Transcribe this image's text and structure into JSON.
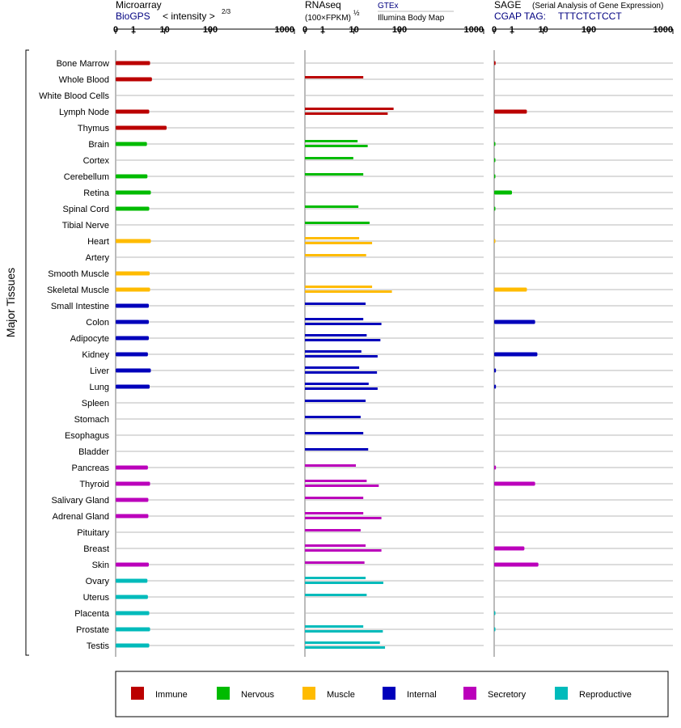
{
  "chart_data": {
    "type": "bar",
    "y_axis_label": "Major Tissues",
    "axis_ticks": [
      "0",
      "1",
      "10",
      "100",
      "1000"
    ],
    "tissues": [
      "Bone Marrow",
      "Whole Blood",
      "White Blood Cells",
      "Lymph Node",
      "Thymus",
      "Brain",
      "Cortex",
      "Cerebellum",
      "Retina",
      "Spinal Cord",
      "Tibial Nerve",
      "Heart",
      "Artery",
      "Smooth Muscle",
      "Skeletal Muscle",
      "Small Intestine",
      "Colon",
      "Adipocyte",
      "Kidney",
      "Liver",
      "Lung",
      "Spleen",
      "Stomach",
      "Esophagus",
      "Bladder",
      "Pancreas",
      "Thyroid",
      "Salivary Gland",
      "Adrenal Gland",
      "Pituitary",
      "Breast",
      "Skin",
      "Ovary",
      "Uterus",
      "Placenta",
      "Prostate",
      "Testis"
    ],
    "tissue_groups": [
      "Immune",
      "Immune",
      "Immune",
      "Immune",
      "Immune",
      "Nervous",
      "Nervous",
      "Nervous",
      "Nervous",
      "Nervous",
      "Nervous",
      "Muscle",
      "Muscle",
      "Muscle",
      "Muscle",
      "Internal",
      "Internal",
      "Internal",
      "Internal",
      "Internal",
      "Internal",
      "Internal",
      "Internal",
      "Internal",
      "Internal",
      "Secretory",
      "Secretory",
      "Secretory",
      "Secretory",
      "Secretory",
      "Secretory",
      "Secretory",
      "Reproductive",
      "Reproductive",
      "Reproductive",
      "Reproductive",
      "Reproductive"
    ],
    "legend": [
      {
        "name": "Immune",
        "color": "#bb0000"
      },
      {
        "name": "Nervous",
        "color": "#00bb00"
      },
      {
        "name": "Muscle",
        "color": "#ffbb00"
      },
      {
        "name": "Internal",
        "color": "#0000bb"
      },
      {
        "name": "Secretory",
        "color": "#bb00bb"
      },
      {
        "name": "Reproductive",
        "color": "#00bbbb"
      }
    ],
    "panels": [
      {
        "id": "microarray",
        "title": "Microarray",
        "subtitle": "BioGPS",
        "unit": "< intensity >",
        "unit_exponent": "2/3",
        "values": [
          [
            3.4
          ],
          [
            3.9
          ],
          [],
          [
            3.2
          ],
          [
            11
          ],
          [
            2.7
          ],
          [],
          [
            2.8
          ],
          [
            3.6
          ],
          [
            3.2
          ],
          [],
          [
            3.6
          ],
          [],
          [
            3.3
          ],
          [
            3.4
          ],
          [
            3.1
          ],
          [
            3.1
          ],
          [
            3.1
          ],
          [
            2.9
          ],
          [
            3.6
          ],
          [
            3.3
          ],
          [],
          [],
          [],
          [],
          [
            2.9
          ],
          [
            3.4
          ],
          [
            3.0
          ],
          [
            3.0
          ],
          [],
          [],
          [
            3.1
          ],
          [
            2.8
          ],
          [
            2.9
          ],
          [
            3.2
          ],
          [
            3.4
          ],
          [
            3.2
          ]
        ]
      },
      {
        "id": "rnaseq",
        "title": "RNAseq",
        "unit": "(100×FPKM)",
        "unit_exponent": "½",
        "sources": [
          "GTEx",
          "Illumina Body Map"
        ],
        "values": [
          [],
          [
            16
          ],
          [],
          [
            74,
            55
          ],
          [],
          [
            12,
            20
          ],
          [
            9.5
          ],
          [
            16
          ],
          [],
          [
            12.5
          ],
          [
            22
          ],
          [
            13,
            25
          ],
          [
            18.5
          ],
          [],
          [
            25,
            68
          ],
          [
            18
          ],
          [
            16,
            40
          ],
          [
            19,
            38
          ],
          [
            14.5,
            33
          ],
          [
            13,
            32
          ],
          [
            21,
            33
          ],
          [
            18
          ],
          [
            14
          ],
          [
            16
          ],
          [
            20.5
          ],
          [
            11
          ],
          [
            19,
            35
          ],
          [
            16
          ],
          [
            16,
            40
          ],
          [
            14
          ],
          [
            18,
            40
          ],
          [
            17
          ],
          [
            18,
            44
          ],
          [
            19
          ],
          [],
          [
            16,
            43
          ],
          [
            37,
            48
          ]
        ]
      },
      {
        "id": "sage",
        "title": "SAGE",
        "subtitle_note": "(Serial Analysis of Gene Expression)",
        "tag_label": "CGAP TAG:",
        "tag_sequence": "TTTCTCTCCT",
        "values": [
          [
            0.08
          ],
          [],
          [],
          [
            3
          ],
          [],
          [
            0.05
          ],
          [
            0.04
          ],
          [
            0.05
          ],
          [
            1
          ],
          [
            0.05
          ],
          [],
          [
            0.03
          ],
          [],
          [],
          [
            3
          ],
          [],
          [
            5.5
          ],
          [],
          [
            6.5
          ],
          [
            0.1
          ],
          [
            0.1
          ],
          [],
          [],
          [],
          [],
          [
            0.1
          ],
          [
            5.5
          ],
          [],
          [],
          [],
          [
            2.5
          ],
          [
            7
          ],
          [],
          [],
          [
            0.05
          ],
          [
            0.05
          ],
          []
        ]
      }
    ]
  }
}
